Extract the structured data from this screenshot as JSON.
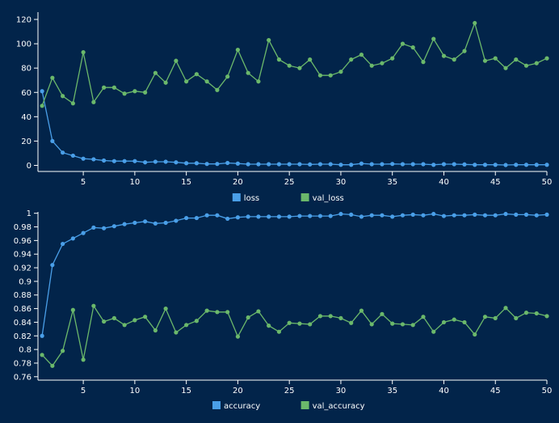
{
  "chart_data": [
    {
      "type": "line",
      "x": [
        1,
        2,
        3,
        4,
        5,
        6,
        7,
        8,
        9,
        10,
        11,
        12,
        13,
        14,
        15,
        16,
        17,
        18,
        19,
        20,
        21,
        22,
        23,
        24,
        25,
        26,
        27,
        28,
        29,
        30,
        31,
        32,
        33,
        34,
        35,
        36,
        37,
        38,
        39,
        40,
        41,
        42,
        43,
        44,
        45,
        46,
        47,
        48,
        49,
        50
      ],
      "xlim": [
        0.6,
        50
      ],
      "x_ticks": [
        5,
        10,
        15,
        20,
        25,
        30,
        35,
        40,
        45,
        50
      ],
      "ylim": [
        -5,
        126
      ],
      "y_ticks": [
        0,
        20,
        40,
        60,
        80,
        100,
        120
      ],
      "y_tick_labels": [
        "0",
        "20",
        "40",
        "60",
        "80",
        "100",
        "120"
      ],
      "legend_position": "bottom-center",
      "grid": false,
      "series": [
        {
          "name": "loss",
          "color": "#4a9fe8",
          "values": [
            61,
            20,
            10.5,
            8,
            5.5,
            5,
            4,
            3.5,
            3.5,
            3.5,
            2.5,
            3,
            3,
            2.5,
            1.8,
            1.8,
            1.2,
            1.2,
            2,
            1.5,
            1,
            1,
            1,
            1,
            1,
            1,
            0.8,
            1,
            1,
            0.5,
            0.5,
            1.5,
            1,
            1,
            1.2,
            1,
            1,
            1,
            0.5,
            1,
            1,
            0.8,
            0.5,
            0.5,
            0.5,
            0.3,
            0.5,
            0.5,
            0.5,
            0.5
          ]
        },
        {
          "name": "val_loss",
          "color": "#6bb86b",
          "values": [
            49,
            72,
            57,
            51,
            93,
            52,
            64,
            64,
            59,
            61,
            60,
            76,
            68,
            86,
            69,
            75,
            69,
            62,
            73,
            95,
            76,
            69,
            103,
            87,
            82,
            80,
            87,
            74,
            74,
            77,
            87,
            91,
            82,
            84,
            88,
            100,
            97,
            85,
            104,
            90,
            87,
            94,
            117,
            86,
            88,
            80,
            87,
            82,
            84,
            88
          ]
        }
      ]
    },
    {
      "type": "line",
      "x": [
        1,
        2,
        3,
        4,
        5,
        6,
        7,
        8,
        9,
        10,
        11,
        12,
        13,
        14,
        15,
        16,
        17,
        18,
        19,
        20,
        21,
        22,
        23,
        24,
        25,
        26,
        27,
        28,
        29,
        30,
        31,
        32,
        33,
        34,
        35,
        36,
        37,
        38,
        39,
        40,
        41,
        42,
        43,
        44,
        45,
        46,
        47,
        48,
        49,
        50
      ],
      "xlim": [
        0.6,
        50
      ],
      "x_ticks": [
        5,
        10,
        15,
        20,
        25,
        30,
        35,
        40,
        45,
        50
      ],
      "ylim": [
        0.755,
        1.002
      ],
      "y_ticks": [
        0.76,
        0.78,
        0.8,
        0.82,
        0.84,
        0.86,
        0.88,
        0.9,
        0.92,
        0.94,
        0.96,
        0.98,
        1
      ],
      "y_tick_labels": [
        "0.76",
        "0.78",
        "0.8",
        "0.82",
        "0.84",
        "0.86",
        "0.88",
        "0.9",
        "0.92",
        "0.94",
        "0.96",
        "0.98",
        "1"
      ],
      "legend_position": "bottom-center",
      "grid": false,
      "series": [
        {
          "name": "accuracy",
          "color": "#4a9fe8",
          "values": [
            0.82,
            0.924,
            0.955,
            0.963,
            0.971,
            0.979,
            0.978,
            0.981,
            0.984,
            0.986,
            0.988,
            0.985,
            0.986,
            0.989,
            0.993,
            0.993,
            0.997,
            0.997,
            0.992,
            0.994,
            0.995,
            0.995,
            0.995,
            0.995,
            0.995,
            0.996,
            0.996,
            0.996,
            0.996,
            0.999,
            0.998,
            0.995,
            0.997,
            0.997,
            0.995,
            0.997,
            0.998,
            0.997,
            0.999,
            0.996,
            0.997,
            0.997,
            0.998,
            0.997,
            0.997,
            0.999,
            0.998,
            0.998,
            0.997,
            0.998
          ]
        },
        {
          "name": "val_accuracy",
          "color": "#6bb86b",
          "values": [
            0.792,
            0.776,
            0.798,
            0.858,
            0.785,
            0.864,
            0.841,
            0.846,
            0.836,
            0.843,
            0.848,
            0.828,
            0.86,
            0.825,
            0.836,
            0.842,
            0.857,
            0.855,
            0.855,
            0.819,
            0.847,
            0.856,
            0.835,
            0.826,
            0.839,
            0.838,
            0.837,
            0.849,
            0.849,
            0.846,
            0.839,
            0.857,
            0.837,
            0.852,
            0.838,
            0.837,
            0.836,
            0.848,
            0.826,
            0.84,
            0.844,
            0.84,
            0.822,
            0.848,
            0.846,
            0.861,
            0.846,
            0.854,
            0.853,
            0.849
          ]
        }
      ]
    }
  ]
}
